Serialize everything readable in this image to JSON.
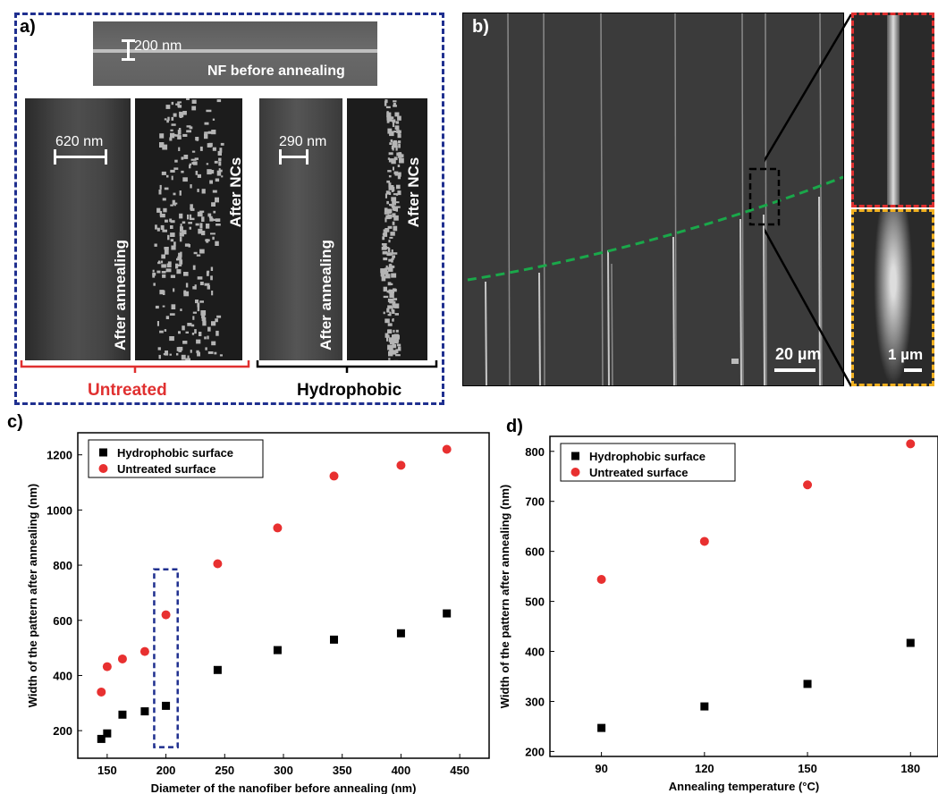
{
  "panel_a": {
    "label": "a)",
    "top_image": {
      "scale": "200 nm",
      "caption": "NF before annealing"
    },
    "untreated": {
      "scale": "620 nm",
      "after_annealing": "After annealing",
      "after_ncs": "After NCs",
      "group_label": "Untreated"
    },
    "hydrophobic": {
      "scale": "290 nm",
      "after_annealing": "After annealing",
      "after_ncs": "After NCs",
      "group_label": "Hydrophobic"
    }
  },
  "panel_b": {
    "label": "b)",
    "scale_main": "20 µm",
    "scale_inset": "1 µm"
  },
  "colors": {
    "frame_a": "#1f2f8f",
    "untreated": "#e03030",
    "green_line": "#1aa84a",
    "inset_top": "#e03030",
    "inset_bottom": "#f0b020",
    "hydrophobic": "#000000"
  },
  "chart_data": [
    {
      "label": "c)",
      "type": "scatter",
      "xlabel": "Diameter of the nanofiber before annealing (nm)",
      "ylabel": "Width of the pattern after annealing (nm)",
      "xlim": [
        125,
        475
      ],
      "ylim": [
        100,
        1280
      ],
      "xticks": [
        150,
        200,
        250,
        300,
        350,
        400,
        450
      ],
      "yticks": [
        200,
        400,
        600,
        800,
        1000,
        1200
      ],
      "legend": "top-left",
      "grid": false,
      "series": [
        {
          "name": "Hydrophobic surface",
          "marker": "square",
          "color": "#000000",
          "x": [
            145,
            150,
            163,
            182,
            200,
            244,
            295,
            343,
            400,
            439
          ],
          "y": [
            170,
            190,
            258,
            270,
            290,
            420,
            492,
            530,
            553,
            625
          ]
        },
        {
          "name": "Untreated surface",
          "marker": "circle",
          "color": "#e83030",
          "x": [
            145,
            150,
            163,
            182,
            200,
            244,
            295,
            343,
            400,
            439
          ],
          "y": [
            340,
            432,
            460,
            487,
            620,
            805,
            935,
            1123,
            1162,
            1220
          ]
        }
      ],
      "highlight_x": [
        190,
        210
      ]
    },
    {
      "label": "d)",
      "type": "scatter",
      "xlabel": "Annealing temperature (°C)",
      "ylabel": "Width of the pattern after annealing (nm)",
      "xlim": [
        75,
        188
      ],
      "ylim": [
        190,
        830
      ],
      "xticks": [
        90,
        120,
        150,
        180
      ],
      "yticks": [
        200,
        300,
        400,
        500,
        600,
        700,
        800
      ],
      "legend": "top-left",
      "grid": false,
      "series": [
        {
          "name": "Hydrophobic surface",
          "marker": "square",
          "color": "#000000",
          "x": [
            90,
            120,
            150,
            180
          ],
          "y": [
            247,
            290,
            335,
            417
          ]
        },
        {
          "name": "Untreated surface",
          "marker": "circle",
          "color": "#e83030",
          "x": [
            90,
            120,
            150,
            180
          ],
          "y": [
            544,
            620,
            733,
            815
          ]
        }
      ]
    }
  ]
}
